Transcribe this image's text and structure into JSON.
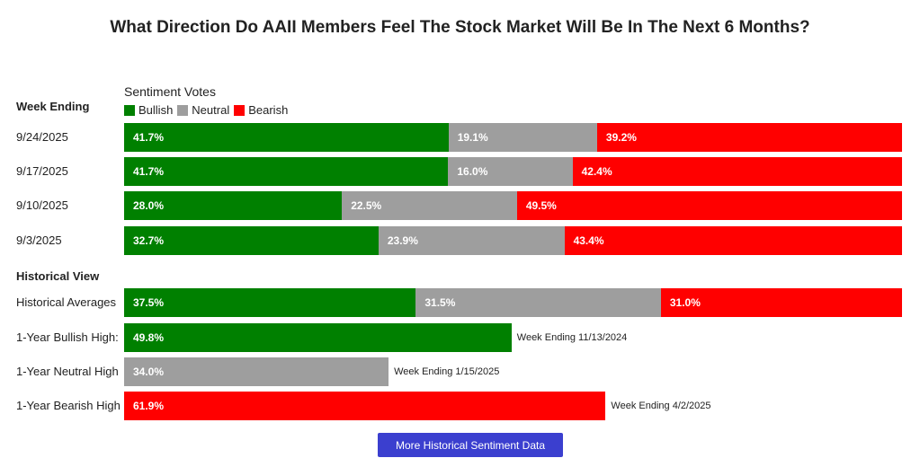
{
  "title": "What Direction Do AAII Members Feel The Stock Market Will Be In The Next 6 Months?",
  "week_ending_label": "Week Ending",
  "sentiment_votes_label": "Sentiment Votes",
  "historical_view_label": "Historical View",
  "legend": [
    {
      "label": "Bullish",
      "color": "#008000"
    },
    {
      "label": "Neutral",
      "color": "#9e9e9e"
    },
    {
      "label": "Bearish",
      "color": "#ff0000"
    }
  ],
  "more_button_label": "More Historical Sentiment Data",
  "chart_data": {
    "type": "bar",
    "orientation": "horizontal",
    "stacked": true,
    "weeks": [
      {
        "label": "9/24/2025",
        "bullish": 41.7,
        "neutral": 19.1,
        "bearish": 39.2,
        "bullish_text": "41.7%",
        "neutral_text": "19.1%",
        "bearish_text": "39.2%"
      },
      {
        "label": "9/17/2025",
        "bullish": 41.7,
        "neutral": 16.0,
        "bearish": 42.4,
        "bullish_text": "41.7%",
        "neutral_text": "16.0%",
        "bearish_text": "42.4%"
      },
      {
        "label": "9/10/2025",
        "bullish": 28.0,
        "neutral": 22.5,
        "bearish": 49.5,
        "bullish_text": "28.0%",
        "neutral_text": "22.5%",
        "bearish_text": "49.5%"
      },
      {
        "label": "9/3/2025",
        "bullish": 32.7,
        "neutral": 23.9,
        "bearish": 43.4,
        "bullish_text": "32.7%",
        "neutral_text": "23.9%",
        "bearish_text": "43.4%"
      }
    ],
    "historical_averages": {
      "label": "Historical Averages",
      "bullish": 37.5,
      "neutral": 31.5,
      "bearish": 31.0,
      "bullish_text": "37.5%",
      "neutral_text": "31.5%",
      "bearish_text": "31.0%"
    },
    "highs": [
      {
        "label": "1-Year Bullish High:",
        "value": 49.8,
        "value_text": "49.8%",
        "sentiment": "bullish",
        "color": "#008000",
        "week_note": "Week Ending 11/13/2024"
      },
      {
        "label": "1-Year Neutral High",
        "value": 34.0,
        "value_text": "34.0%",
        "sentiment": "neutral",
        "color": "#9e9e9e",
        "week_note": "Week Ending 1/15/2025"
      },
      {
        "label": "1-Year Bearish High",
        "value": 61.9,
        "value_text": "61.9%",
        "sentiment": "bearish",
        "color": "#ff0000",
        "week_note": "Week Ending 4/2/2025"
      }
    ],
    "xlim": [
      0,
      100
    ]
  }
}
